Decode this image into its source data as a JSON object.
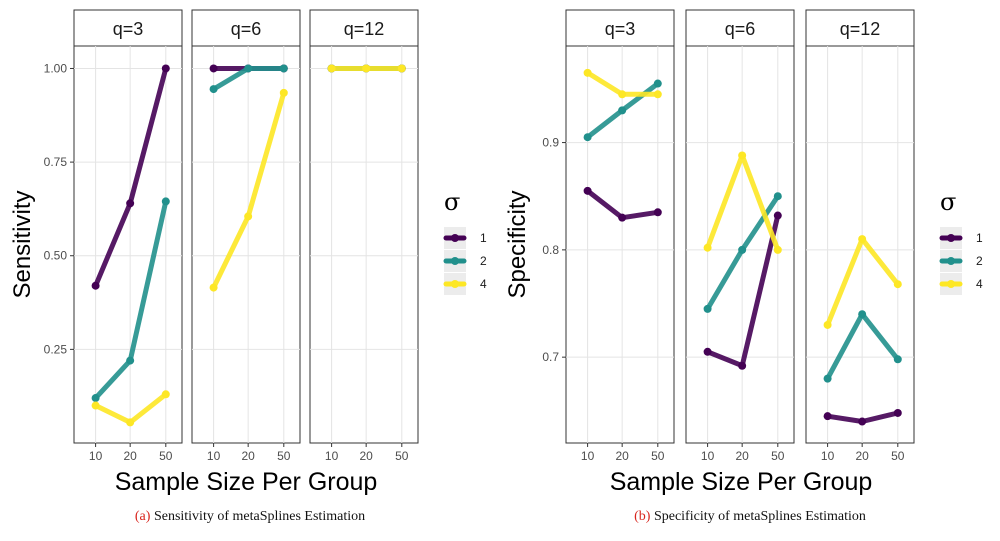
{
  "chart_data": [
    {
      "type": "line",
      "title": "",
      "xlabel": "Sample Size Per Group",
      "ylabel": "Sensitivity",
      "categories": [
        "10",
        "20",
        "50"
      ],
      "ylim": [
        0.0,
        1.06
      ],
      "yticks": [
        "0.25",
        "0.50",
        "0.75",
        "1.00"
      ],
      "grid": true,
      "legend": {
        "title": "σ",
        "placement": "right",
        "entries": [
          "1",
          "2",
          "4"
        ]
      },
      "panels": [
        {
          "label": "q=3",
          "series": [
            {
              "name": "1",
              "color": "#440154",
              "values": [
                0.42,
                0.64,
                1.0
              ]
            },
            {
              "name": "2",
              "color": "#21908C",
              "values": [
                0.12,
                0.22,
                0.645
              ]
            },
            {
              "name": "4",
              "color": "#FDE725",
              "values": [
                0.1,
                0.055,
                0.13
              ]
            }
          ]
        },
        {
          "label": "q=6",
          "series": [
            {
              "name": "1",
              "color": "#440154",
              "values": [
                1.0,
                1.0,
                1.0
              ]
            },
            {
              "name": "2",
              "color": "#21908C",
              "values": [
                0.945,
                1.0,
                1.0
              ]
            },
            {
              "name": "4",
              "color": "#FDE725",
              "values": [
                0.415,
                0.605,
                0.935
              ]
            }
          ]
        },
        {
          "label": "q=12",
          "series": [
            {
              "name": "1",
              "color": "#440154",
              "values": [
                1.0,
                1.0,
                1.0
              ]
            },
            {
              "name": "2",
              "color": "#21908C",
              "values": [
                1.0,
                1.0,
                1.0
              ]
            },
            {
              "name": "4",
              "color": "#FDE725",
              "values": [
                1.0,
                1.0,
                1.0
              ]
            }
          ]
        }
      ],
      "caption": {
        "tag": "(a)",
        "text": "Sensitivity of metaSplines Estimation"
      }
    },
    {
      "type": "line",
      "title": "",
      "xlabel": "Sample Size Per Group",
      "ylabel": "Specificity",
      "categories": [
        "10",
        "20",
        "50"
      ],
      "ylim": [
        0.62,
        0.99
      ],
      "yticks": [
        "0.7",
        "0.8",
        "0.9"
      ],
      "grid": true,
      "legend": {
        "title": "σ",
        "placement": "right",
        "entries": [
          "1",
          "2",
          "4"
        ]
      },
      "panels": [
        {
          "label": "q=3",
          "series": [
            {
              "name": "1",
              "color": "#440154",
              "values": [
                0.855,
                0.83,
                0.835
              ]
            },
            {
              "name": "2",
              "color": "#21908C",
              "values": [
                0.905,
                0.93,
                0.955
              ]
            },
            {
              "name": "4",
              "color": "#FDE725",
              "values": [
                0.965,
                0.945,
                0.945
              ]
            }
          ]
        },
        {
          "label": "q=6",
          "series": [
            {
              "name": "1",
              "color": "#440154",
              "values": [
                0.705,
                0.692,
                0.832
              ]
            },
            {
              "name": "2",
              "color": "#21908C",
              "values": [
                0.745,
                0.8,
                0.85
              ]
            },
            {
              "name": "4",
              "color": "#FDE725",
              "values": [
                0.802,
                0.888,
                0.8
              ]
            }
          ]
        },
        {
          "label": "q=12",
          "series": [
            {
              "name": "1",
              "color": "#440154",
              "values": [
                0.645,
                0.64,
                0.648
              ]
            },
            {
              "name": "2",
              "color": "#21908C",
              "values": [
                0.68,
                0.74,
                0.698
              ]
            },
            {
              "name": "4",
              "color": "#FDE725",
              "values": [
                0.73,
                0.81,
                0.768
              ]
            }
          ]
        }
      ],
      "caption": {
        "tag": "(b)",
        "text": "Specificity of metaSplines Estimation"
      }
    }
  ]
}
